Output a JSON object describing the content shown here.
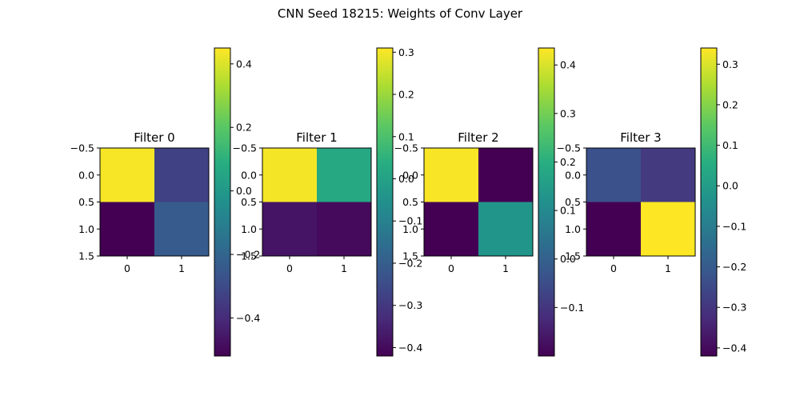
{
  "figure": {
    "title": "CNN Seed 18215: Weights of Conv Layer"
  },
  "chart_data": [
    {
      "type": "heatmap",
      "title": "Filter 0",
      "x_ticks": [
        "0",
        "1"
      ],
      "y_ticks": [
        "−0.5",
        "0.0",
        "0.5",
        "1.0",
        "1.5"
      ],
      "values": [
        [
          0.44,
          -0.33
        ],
        [
          -0.52,
          -0.24
        ]
      ],
      "colorbar": {
        "range": [
          -0.52,
          0.45
        ],
        "tick_values": [
          0.4,
          0.2,
          0.0,
          -0.2,
          -0.4
        ],
        "tick_labels": [
          "0.4",
          "0.2",
          "0.0",
          "−0.2",
          "−0.4"
        ]
      }
    },
    {
      "type": "heatmap",
      "title": "Filter 1",
      "x_ticks": [
        "0",
        "1"
      ],
      "y_ticks": [
        "−0.5",
        "0.0",
        "0.5",
        "1.0",
        "1.5"
      ],
      "values": [
        [
          0.3,
          0.02
        ],
        [
          -0.38,
          -0.4
        ]
      ],
      "colorbar": {
        "range": [
          -0.42,
          0.31
        ],
        "tick_values": [
          0.3,
          0.2,
          0.1,
          0.0,
          -0.1,
          -0.2,
          -0.3,
          -0.4
        ],
        "tick_labels": [
          "0.3",
          "0.2",
          "0.1",
          "0.0",
          "−0.1",
          "−0.2",
          "−0.3",
          "−0.4"
        ]
      }
    },
    {
      "type": "heatmap",
      "title": "Filter 2",
      "x_ticks": [
        "0",
        "1"
      ],
      "y_ticks": [
        "−0.5",
        "0.0",
        "0.5",
        "1.0",
        "1.5"
      ],
      "values": [
        [
          0.43,
          -0.2
        ],
        [
          -0.2,
          0.13
        ]
      ],
      "colorbar": {
        "range": [
          -0.2,
          0.435
        ],
        "tick_values": [
          0.4,
          0.3,
          0.2,
          0.1,
          0.0,
          -0.1
        ],
        "tick_labels": [
          "0.4",
          "0.3",
          "0.2",
          "0.1",
          "0.0",
          "−0.1"
        ]
      }
    },
    {
      "type": "heatmap",
      "title": "Filter 3",
      "x_ticks": [
        "0",
        "1"
      ],
      "y_ticks": [
        "−0.5",
        "0.0",
        "0.5",
        "1.0",
        "1.5"
      ],
      "values": [
        [
          -0.23,
          -0.29
        ],
        [
          -0.42,
          0.34
        ]
      ],
      "colorbar": {
        "range": [
          -0.42,
          0.34
        ],
        "tick_values": [
          0.3,
          0.2,
          0.1,
          0.0,
          -0.1,
          -0.2,
          -0.3,
          -0.4
        ],
        "tick_labels": [
          "0.3",
          "0.2",
          "0.1",
          "0.0",
          "−0.1",
          "−0.2",
          "−0.3",
          "−0.4"
        ]
      }
    }
  ]
}
